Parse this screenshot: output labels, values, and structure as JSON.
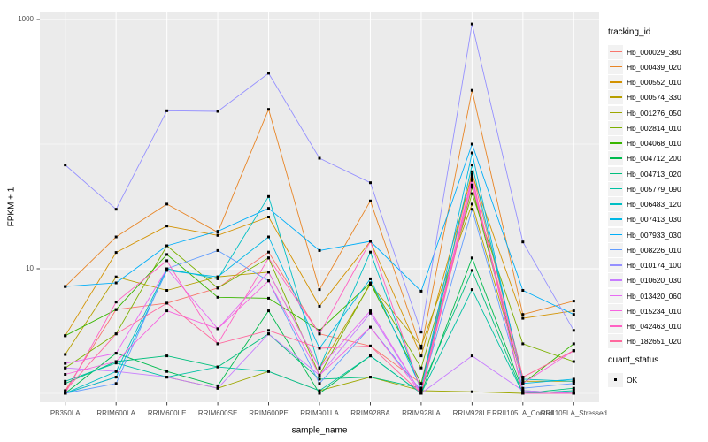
{
  "figure": {
    "kind": "ggplot-line-chart",
    "panel_bg": "#EBEBEB",
    "grid_color": "#FFFFFF",
    "tick_color": "#333333",
    "axis_text_color": "#4d4d4d",
    "point_color": "#000000"
  },
  "chart_data": {
    "type": "line",
    "title": "",
    "xlabel": "sample_name",
    "ylabel": "FPKM + 1",
    "y_scale": "log10",
    "ylim": [
      0.85,
      1150
    ],
    "y_ticks": [
      {
        "label": "10",
        "value": 10
      },
      {
        "label": "1000",
        "value": 1000
      }
    ],
    "y_minor_grid_values": [
      1,
      100
    ],
    "grid": true,
    "legend_position": "right",
    "legend_title": "tracking_id",
    "quant_legend": {
      "title": "quant_status",
      "items": [
        {
          "label": "OK",
          "marker": "black-square"
        }
      ]
    },
    "categories": [
      "PB350LA",
      "RRIM600LA",
      "RRIM600LE",
      "RRIM600SE",
      "RRIM600PE",
      "RRIM901LA",
      "RRIM928BA",
      "RRIM928LA",
      "RRIM928LE",
      "RRII105LA_Control",
      "RRII105LA_Stressed"
    ],
    "series": [
      {
        "name": "Hb_000029_380",
        "color": "#F8766D",
        "values": [
          1.05,
          4.7,
          5.3,
          7.0,
          13.6,
          3.0,
          2.4,
          1.2,
          60,
          1.35,
          2.2
        ]
      },
      {
        "name": "Hb_000439_020",
        "color": "#E88526",
        "values": [
          7.2,
          18,
          33,
          19.6,
          190,
          6.8,
          35,
          2.3,
          270,
          4.3,
          5.5
        ]
      },
      {
        "name": "Hb_000552_010",
        "color": "#D39200",
        "values": [
          2.9,
          13.5,
          22,
          18.5,
          26,
          5.0,
          16.6,
          2.0,
          57,
          4.0,
          4.6
        ]
      },
      {
        "name": "Hb_000574_330",
        "color": "#B79F00",
        "values": [
          2.05,
          8.6,
          6.7,
          8.6,
          9.4,
          1.6,
          7.5,
          2.4,
          33,
          1.25,
          1.25
        ]
      },
      {
        "name": "Hb_001276_050",
        "color": "#9DA700",
        "values": [
          1.0,
          1.35,
          1.35,
          1.1,
          1.5,
          1.05,
          1.35,
          1.05,
          1.03,
          1.0,
          1.0
        ]
      },
      {
        "name": "Hb_002814_010",
        "color": "#7CB000",
        "values": [
          1.6,
          3.0,
          15.3,
          7.0,
          12.2,
          1.4,
          7.7,
          1.6,
          40,
          2.5,
          1.8
        ]
      },
      {
        "name": "Hb_004068_010",
        "color": "#39B600",
        "values": [
          2.9,
          4.7,
          13.0,
          5.9,
          5.8,
          3.2,
          7.7,
          1.2,
          45,
          1.2,
          2.5
        ]
      },
      {
        "name": "Hb_004712_200",
        "color": "#00BB4E",
        "values": [
          1.0,
          2.1,
          1.5,
          1.15,
          4.6,
          1.0,
          2.0,
          1.0,
          12.2,
          1.05,
          1.0
        ]
      },
      {
        "name": "Hb_004713_020",
        "color": "#00BF7D",
        "values": [
          1.2,
          1.8,
          2.0,
          1.63,
          3.0,
          1.3,
          1.35,
          1.1,
          9.7,
          1.0,
          1.1
        ]
      },
      {
        "name": "Hb_005779_090",
        "color": "#00C1A3",
        "values": [
          1.25,
          1.75,
          1.35,
          1.63,
          1.5,
          1.05,
          2.0,
          1.0,
          6.8,
          1.0,
          1.05
        ]
      },
      {
        "name": "Hb_006483_120",
        "color": "#00BFC4",
        "values": [
          1.0,
          1.5,
          10.0,
          8.3,
          38,
          1.6,
          13.6,
          1.05,
          68,
          1.3,
          1.25
        ]
      },
      {
        "name": "Hb_007413_030",
        "color": "#00B8E5",
        "values": [
          1.0,
          1.35,
          9.7,
          8.6,
          18,
          2.3,
          8.3,
          1.1,
          85,
          1.2,
          1.3
        ]
      },
      {
        "name": "Hb_007933_030",
        "color": "#00AEF8",
        "values": [
          7.2,
          7.7,
          15.3,
          20,
          30.5,
          14,
          16.6,
          6.6,
          100,
          6.7,
          4.3
        ]
      },
      {
        "name": "Hb_008226_010",
        "color": "#619CFF",
        "values": [
          1.0,
          1.2,
          10.0,
          14,
          8.0,
          1.2,
          3.4,
          1.05,
          30,
          1.1,
          1.2
        ]
      },
      {
        "name": "Hb_010174_100",
        "color": "#9590FF",
        "values": [
          68,
          30,
          185,
          183,
          370,
          77,
          49,
          3.1,
          920,
          16.4,
          3.2
        ]
      },
      {
        "name": "Hb_010620_030",
        "color": "#C77CFF",
        "values": [
          1.6,
          1.5,
          1.35,
          1.1,
          3.0,
          1.4,
          4.4,
          1.0,
          2.0,
          1.05,
          1.0
        ]
      },
      {
        "name": "Hb_013420_060",
        "color": "#E76BF3",
        "values": [
          1.74,
          2.1,
          10.0,
          3.3,
          9.4,
          1.6,
          4.6,
          1.0,
          53,
          1.0,
          1.0
        ]
      },
      {
        "name": "Hb_015234_010",
        "color": "#F763E0",
        "values": [
          1.42,
          1.8,
          4.6,
          3.3,
          8.0,
          1.4,
          3.4,
          1.0,
          51,
          1.2,
          2.2
        ]
      },
      {
        "name": "Hb_042463_010",
        "color": "#FF61C3",
        "values": [
          1.0,
          5.4,
          11.6,
          2.5,
          12.2,
          3.0,
          16.6,
          1.05,
          55,
          1.0,
          1.0
        ]
      },
      {
        "name": "Hb_182651_020",
        "color": "#FF689E",
        "values": [
          1.05,
          3.0,
          5.3,
          2.5,
          3.2,
          2.3,
          2.4,
          1.0,
          47,
          1.35,
          2.2
        ]
      }
    ]
  }
}
